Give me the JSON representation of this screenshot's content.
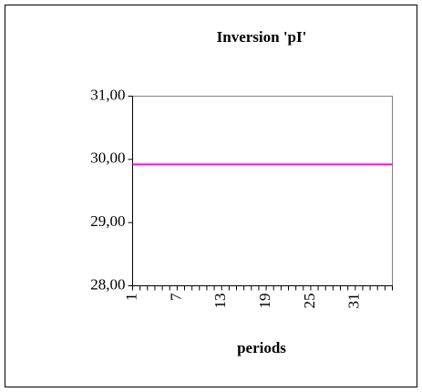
{
  "chart_data": {
    "type": "line",
    "title": "Inversion 'pI'",
    "x_label": "periods",
    "categories": [
      "1",
      null,
      null,
      null,
      null,
      null,
      "7",
      null,
      null,
      null,
      null,
      null,
      "13",
      null,
      null,
      null,
      null,
      null,
      "19",
      null,
      null,
      null,
      null,
      null,
      "25",
      null,
      null,
      null,
      null,
      null,
      "31",
      null,
      null,
      null,
      null,
      null
    ],
    "series": [
      {
        "name": "pI",
        "color": "#ff00ff",
        "values": [
          29.92,
          29.92,
          29.92,
          29.92,
          29.92,
          29.92,
          29.92,
          29.92,
          29.92,
          29.92,
          29.92,
          29.92,
          29.92,
          29.92,
          29.92,
          29.92,
          29.92,
          29.92,
          29.92,
          29.92,
          29.92,
          29.92,
          29.92,
          29.92,
          29.92,
          29.92,
          29.92,
          29.92,
          29.92,
          29.92,
          29.92,
          29.92,
          29.92,
          29.92,
          29.92,
          29.92
        ]
      }
    ],
    "ylim": [
      28,
      31
    ],
    "yticks": [
      {
        "value": 28,
        "label": "28,00"
      },
      {
        "value": 29,
        "label": "29,00"
      },
      {
        "value": 30,
        "label": "30,00"
      },
      {
        "value": 31,
        "label": "31,00"
      }
    ],
    "grid": false,
    "legend": false
  }
}
